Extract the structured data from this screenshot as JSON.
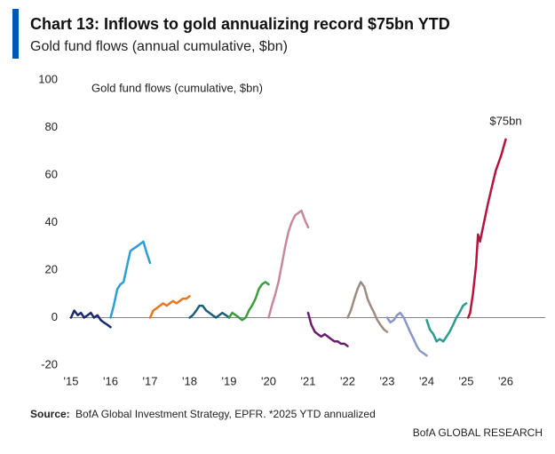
{
  "chart_data": {
    "type": "line",
    "title": "Chart 13: Inflows to gold annualizing record $75bn YTD",
    "subtitle": "Gold fund flows (annual cumulative, $bn)",
    "annotation": "Gold fund flows (cumulative, $bn)",
    "callout": {
      "text": "$75bn",
      "x": 2026.0,
      "y": 75
    },
    "source_label": "Source:",
    "source": "BofA Global Investment Strategy, EPFR. *2025 YTD annualized",
    "brand": "BofA GLOBAL RESEARCH",
    "xlim": [
      2015,
      2027
    ],
    "xticks": [
      {
        "value": 2015,
        "label": "'15"
      },
      {
        "value": 2016,
        "label": "'16"
      },
      {
        "value": 2017,
        "label": "'17"
      },
      {
        "value": 2018,
        "label": "'18"
      },
      {
        "value": 2019,
        "label": "'19"
      },
      {
        "value": 2020,
        "label": "'20"
      },
      {
        "value": 2021,
        "label": "'21"
      },
      {
        "value": 2022,
        "label": "'22"
      },
      {
        "value": 2023,
        "label": "'23"
      },
      {
        "value": 2024,
        "label": "'24"
      },
      {
        "value": 2025,
        "label": "'25"
      },
      {
        "value": 2026,
        "label": "'26"
      }
    ],
    "ylim": [
      -20,
      100
    ],
    "yticks": [
      -20,
      0,
      20,
      40,
      60,
      80,
      100
    ],
    "series": [
      {
        "color": "#1a2a6c",
        "x": [
          2015.0,
          2015.08,
          2015.17,
          2015.25,
          2015.33,
          2015.42,
          2015.5,
          2015.58,
          2015.67,
          2015.75,
          2015.83,
          2015.92,
          2016.0
        ],
        "values": [
          0,
          3,
          1,
          2,
          0,
          1,
          2,
          0,
          1,
          -1,
          -2,
          -3,
          -4
        ]
      },
      {
        "color": "#2a9fd6",
        "x": [
          2016.0,
          2016.08,
          2016.17,
          2016.25,
          2016.33,
          2016.42,
          2016.5,
          2016.58,
          2016.67,
          2016.75,
          2016.83,
          2016.92,
          2017.0
        ],
        "values": [
          0,
          5,
          12,
          14,
          15,
          22,
          28,
          29,
          30,
          31,
          32,
          27,
          23
        ]
      },
      {
        "color": "#e87722",
        "x": [
          2017.0,
          2017.08,
          2017.17,
          2017.25,
          2017.33,
          2017.42,
          2017.5,
          2017.58,
          2017.67,
          2017.75,
          2017.83,
          2017.92,
          2018.0
        ],
        "values": [
          0,
          3,
          4,
          5,
          6,
          5,
          6,
          7,
          6,
          7,
          8,
          8,
          9
        ]
      },
      {
        "color": "#1b5e7a",
        "x": [
          2018.0,
          2018.08,
          2018.17,
          2018.25,
          2018.33,
          2018.42,
          2018.5,
          2018.58,
          2018.67,
          2018.75,
          2018.83,
          2018.92,
          2019.0
        ],
        "values": [
          0,
          1,
          3,
          5,
          5,
          3,
          2,
          1,
          0,
          1,
          2,
          1,
          0
        ]
      },
      {
        "color": "#3a9d3a",
        "x": [
          2019.0,
          2019.08,
          2019.17,
          2019.25,
          2019.33,
          2019.42,
          2019.5,
          2019.58,
          2019.67,
          2019.75,
          2019.83,
          2019.92,
          2020.0
        ],
        "values": [
          0,
          2,
          1,
          0,
          -1,
          0,
          3,
          5,
          8,
          12,
          14,
          15,
          14
        ]
      },
      {
        "color": "#c8889c",
        "x": [
          2020.0,
          2020.08,
          2020.17,
          2020.25,
          2020.33,
          2020.42,
          2020.5,
          2020.58,
          2020.67,
          2020.75,
          2020.83,
          2020.92,
          2021.0
        ],
        "values": [
          0,
          5,
          10,
          15,
          22,
          30,
          36,
          40,
          43,
          44,
          45,
          41,
          38
        ]
      },
      {
        "color": "#6b1e6b",
        "x": [
          2021.0,
          2021.08,
          2021.17,
          2021.25,
          2021.33,
          2021.42,
          2021.5,
          2021.58,
          2021.67,
          2021.75,
          2021.83,
          2021.92,
          2022.0
        ],
        "values": [
          2,
          -3,
          -6,
          -7,
          -8,
          -7,
          -8,
          -9,
          -10,
          -10,
          -11,
          -11,
          -12
        ]
      },
      {
        "color": "#9d8a80",
        "x": [
          2022.0,
          2022.08,
          2022.17,
          2022.25,
          2022.33,
          2022.42,
          2022.5,
          2022.58,
          2022.67,
          2022.75,
          2022.83,
          2022.92,
          2023.0
        ],
        "values": [
          0,
          3,
          8,
          12,
          15,
          13,
          8,
          5,
          2,
          -1,
          -3,
          -5,
          -6
        ]
      },
      {
        "color": "#8a96c8",
        "x": [
          2023.0,
          2023.08,
          2023.17,
          2023.25,
          2023.33,
          2023.42,
          2023.5,
          2023.58,
          2023.67,
          2023.75,
          2023.83,
          2023.92,
          2024.0
        ],
        "values": [
          0,
          -2,
          -1,
          1,
          2,
          0,
          -3,
          -6,
          -9,
          -12,
          -14,
          -15,
          -16
        ]
      },
      {
        "color": "#2a9d8f",
        "x": [
          2024.0,
          2024.08,
          2024.17,
          2024.25,
          2024.33,
          2024.42,
          2024.5,
          2024.58,
          2024.67,
          2024.75,
          2024.83,
          2024.92,
          2025.0
        ],
        "values": [
          -1,
          -5,
          -7,
          -10,
          -9,
          -10,
          -8,
          -6,
          -3,
          0,
          2,
          5,
          6
        ]
      },
      {
        "color": "#b5123e",
        "x": [
          2025.05,
          2025.1,
          2025.17,
          2025.25,
          2025.3,
          2025.35,
          2025.45,
          2025.55,
          2025.65,
          2025.75,
          2025.88,
          2026.0
        ],
        "values": [
          0,
          2,
          10,
          22,
          35,
          32,
          40,
          48,
          55,
          62,
          68,
          75
        ]
      }
    ]
  }
}
